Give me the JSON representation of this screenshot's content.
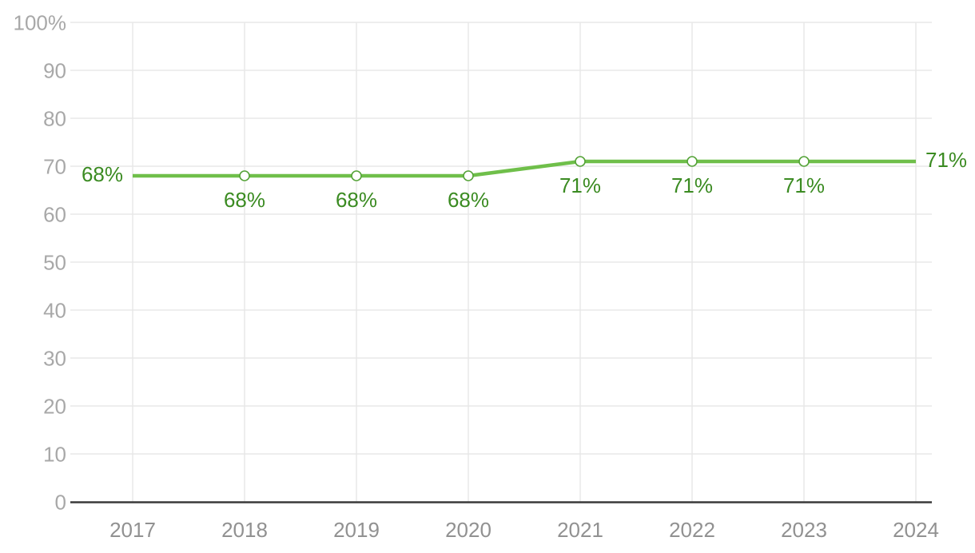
{
  "chart_data": {
    "type": "line",
    "title": "",
    "xlabel": "",
    "ylabel": "",
    "x_labels": [
      "2017",
      "2018",
      "2019",
      "2020",
      "2021",
      "2022",
      "2023",
      "2024"
    ],
    "series": [
      {
        "name": "percentage",
        "values": [
          68,
          68,
          68,
          68,
          71,
          71,
          71,
          71
        ]
      }
    ],
    "point_labels": [
      "68%",
      "68%",
      "68%",
      "68%",
      "71%",
      "71%",
      "71%",
      "71%"
    ],
    "label_placement": [
      "left",
      "below",
      "below",
      "below",
      "below",
      "below",
      "below",
      "right"
    ],
    "markers": [
      false,
      true,
      true,
      true,
      true,
      true,
      true,
      false
    ],
    "y_ticks": [
      {
        "value": 100,
        "label": "100%"
      },
      {
        "value": 90,
        "label": "90"
      },
      {
        "value": 80,
        "label": "80"
      },
      {
        "value": 70,
        "label": "70"
      },
      {
        "value": 60,
        "label": "60"
      },
      {
        "value": 50,
        "label": "50"
      },
      {
        "value": 40,
        "label": "40"
      },
      {
        "value": 30,
        "label": "30"
      },
      {
        "value": 20,
        "label": "20"
      },
      {
        "value": 10,
        "label": "10"
      },
      {
        "value": 0,
        "label": "0"
      }
    ],
    "ylim": [
      0,
      100
    ],
    "grid": true,
    "legend": "none"
  },
  "colors": {
    "line": "#6fbf4a",
    "marker_stroke": "#55a338",
    "marker_fill": "#ffffff",
    "data_label": "#3b8b22",
    "y_tick_text": "#a8a8a8",
    "x_tick_text": "#919191",
    "gridline": "#e8e8e8",
    "axis_line": "#3a3a3a",
    "background": "#ffffff"
  }
}
